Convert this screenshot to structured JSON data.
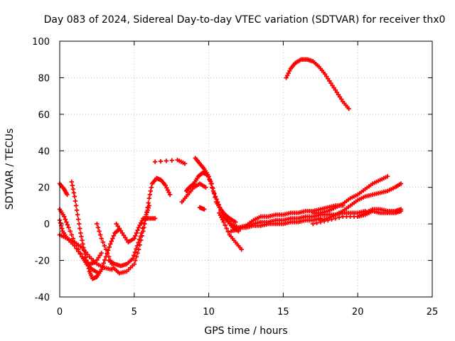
{
  "chart_data": {
    "type": "scatter",
    "title": "Day 083 of 2024, Sidereal Day-to-day VTEC variation (SDTVAR) for receiver thx0",
    "xlabel": "GPS time / hours",
    "ylabel": "SDTVAR / TECUs",
    "xlim": [
      0,
      25
    ],
    "ylim": [
      -40,
      100
    ],
    "xticks": [
      0,
      5,
      10,
      15,
      20,
      25
    ],
    "yticks": [
      -40,
      -20,
      0,
      20,
      40,
      60,
      80,
      100
    ],
    "grid": true,
    "marker": "plus",
    "color": "#ff0000",
    "series": [
      {
        "name": "s1",
        "points": [
          [
            0.0,
            22
          ],
          [
            0.3,
            19
          ],
          [
            0.5,
            16
          ]
        ]
      },
      {
        "name": "s2",
        "points": [
          [
            0.0,
            8
          ],
          [
            0.3,
            4
          ],
          [
            0.6,
            -2
          ],
          [
            1.0,
            -10
          ],
          [
            1.5,
            -18
          ],
          [
            2.0,
            -22
          ],
          [
            2.4,
            -21
          ],
          [
            2.8,
            -16
          ]
        ]
      },
      {
        "name": "s3",
        "points": [
          [
            0.0,
            2
          ],
          [
            0.2,
            -4
          ],
          [
            0.5,
            -8
          ],
          [
            1.0,
            -12
          ],
          [
            1.5,
            -18
          ],
          [
            1.8,
            -22
          ],
          [
            2.2,
            -25
          ],
          [
            2.6,
            -27
          ]
        ]
      },
      {
        "name": "s4",
        "points": [
          [
            0.0,
            -6
          ],
          [
            0.5,
            -8
          ],
          [
            1.0,
            -10
          ],
          [
            1.5,
            -13
          ],
          [
            2.0,
            -18
          ],
          [
            2.5,
            -22
          ],
          [
            3.0,
            -24
          ],
          [
            3.5,
            -25
          ]
        ]
      },
      {
        "name": "s5",
        "points": [
          [
            0.8,
            23
          ],
          [
            1.0,
            15
          ],
          [
            1.2,
            5
          ],
          [
            1.4,
            -5
          ],
          [
            1.6,
            -13
          ],
          [
            1.8,
            -20
          ],
          [
            2.0,
            -26
          ],
          [
            2.2,
            -30
          ],
          [
            2.5,
            -29
          ],
          [
            2.8,
            -25
          ],
          [
            3.1,
            -18
          ],
          [
            3.4,
            -11
          ],
          [
            3.7,
            -5
          ],
          [
            4.0,
            -3
          ]
        ]
      },
      {
        "name": "s6",
        "points": [
          [
            2.5,
            0
          ],
          [
            2.8,
            -8
          ],
          [
            3.2,
            -16
          ],
          [
            3.6,
            -24
          ],
          [
            4.0,
            -27
          ],
          [
            4.5,
            -26
          ],
          [
            5.0,
            -22
          ],
          [
            5.3,
            -14
          ],
          [
            5.6,
            -4
          ],
          [
            5.8,
            4
          ],
          [
            6.0,
            14
          ],
          [
            6.2,
            22
          ],
          [
            6.5,
            25
          ],
          [
            6.8,
            24
          ],
          [
            7.1,
            21
          ],
          [
            7.4,
            16
          ]
        ]
      },
      {
        "name": "s7",
        "points": [
          [
            3.8,
            0
          ],
          [
            4.2,
            -5
          ],
          [
            4.6,
            -10
          ],
          [
            5.0,
            -8
          ],
          [
            5.3,
            -2
          ],
          [
            5.6,
            3
          ],
          [
            6.0,
            3
          ],
          [
            6.4,
            3
          ]
        ]
      },
      {
        "name": "s8",
        "points": [
          [
            3.3,
            -20
          ],
          [
            3.7,
            -22
          ],
          [
            4.1,
            -23
          ],
          [
            4.5,
            -22
          ],
          [
            4.9,
            -19
          ],
          [
            5.2,
            -12
          ],
          [
            5.5,
            -5
          ],
          [
            5.8,
            5
          ],
          [
            6.0,
            10
          ]
        ]
      },
      {
        "name": "s9",
        "points": [
          [
            6.4,
            34
          ],
          [
            7.9,
            35
          ],
          [
            8.4,
            33
          ]
        ]
      },
      {
        "name": "s10",
        "points": [
          [
            8.5,
            18
          ],
          [
            8.7,
            20
          ],
          [
            9.0,
            22
          ],
          [
            9.3,
            26
          ],
          [
            9.6,
            28
          ],
          [
            9.9,
            27
          ],
          [
            10.2,
            22
          ],
          [
            10.5,
            12
          ],
          [
            10.8,
            8
          ],
          [
            11.1,
            5
          ],
          [
            11.4,
            3
          ],
          [
            11.8,
            1
          ]
        ]
      },
      {
        "name": "s11",
        "points": [
          [
            8.2,
            12
          ],
          [
            8.6,
            16
          ],
          [
            9.0,
            20
          ],
          [
            9.4,
            22
          ],
          [
            9.8,
            20
          ]
        ]
      },
      {
        "name": "s12",
        "points": [
          [
            9.1,
            36
          ],
          [
            9.4,
            33
          ],
          [
            9.7,
            30
          ],
          [
            10.0,
            26
          ],
          [
            10.3,
            18
          ],
          [
            10.6,
            12
          ],
          [
            10.9,
            6
          ],
          [
            11.2,
            2
          ],
          [
            11.6,
            -2
          ],
          [
            12.0,
            -4
          ]
        ]
      },
      {
        "name": "s13",
        "points": [
          [
            9.4,
            9
          ],
          [
            9.7,
            8
          ]
        ]
      },
      {
        "name": "s14",
        "points": [
          [
            10.7,
            6
          ],
          [
            11.0,
            1
          ],
          [
            11.4,
            -6
          ],
          [
            11.8,
            -10
          ],
          [
            12.2,
            -14
          ]
        ]
      },
      {
        "name": "s15",
        "points": [
          [
            11.0,
            5
          ],
          [
            11.5,
            0
          ],
          [
            12.0,
            -2
          ],
          [
            12.5,
            -1
          ],
          [
            13.0,
            2
          ],
          [
            13.5,
            4
          ],
          [
            14.0,
            4
          ],
          [
            14.5,
            5
          ],
          [
            15.0,
            5
          ],
          [
            15.5,
            6
          ],
          [
            16.0,
            6
          ],
          [
            16.5,
            7
          ],
          [
            17.0,
            7
          ],
          [
            17.5,
            8
          ],
          [
            18.0,
            9
          ],
          [
            18.5,
            10
          ],
          [
            19.0,
            10
          ]
        ]
      },
      {
        "name": "s16",
        "points": [
          [
            11.5,
            -4
          ],
          [
            12.0,
            -3
          ],
          [
            12.5,
            -1
          ],
          [
            13.0,
            0
          ],
          [
            13.5,
            1
          ],
          [
            14.0,
            1
          ],
          [
            14.5,
            2
          ],
          [
            15.0,
            2
          ],
          [
            15.5,
            3
          ],
          [
            16.0,
            3
          ],
          [
            16.5,
            4
          ],
          [
            17.0,
            4
          ],
          [
            17.5,
            5
          ],
          [
            18.0,
            5
          ],
          [
            18.5,
            5
          ],
          [
            19.0,
            6
          ],
          [
            19.5,
            6
          ],
          [
            20.0,
            6
          ],
          [
            20.5,
            7
          ]
        ]
      },
      {
        "name": "s17",
        "points": [
          [
            12.0,
            -2
          ],
          [
            12.5,
            -2
          ],
          [
            13.0,
            -1
          ],
          [
            13.5,
            -1
          ],
          [
            14.0,
            0
          ],
          [
            14.5,
            0
          ],
          [
            15.0,
            0
          ],
          [
            15.5,
            1
          ],
          [
            16.0,
            1
          ],
          [
            16.5,
            2
          ],
          [
            17.0,
            2
          ],
          [
            17.5,
            3
          ]
        ]
      },
      {
        "name": "s18",
        "points": [
          [
            17.0,
            6
          ],
          [
            17.5,
            6
          ],
          [
            18.0,
            7
          ],
          [
            18.5,
            9
          ],
          [
            19.0,
            11
          ],
          [
            19.5,
            14
          ],
          [
            20.0,
            16
          ],
          [
            20.5,
            19
          ],
          [
            21.0,
            22
          ],
          [
            21.5,
            24
          ],
          [
            22.0,
            26
          ]
        ]
      },
      {
        "name": "s19",
        "points": [
          [
            17.5,
            2
          ],
          [
            18.0,
            3
          ],
          [
            18.5,
            5
          ],
          [
            19.0,
            7
          ],
          [
            19.5,
            10
          ],
          [
            20.0,
            13
          ],
          [
            20.5,
            15
          ],
          [
            21.0,
            16
          ],
          [
            21.5,
            17
          ],
          [
            22.0,
            18
          ],
          [
            22.5,
            20
          ],
          [
            22.9,
            22
          ]
        ]
      },
      {
        "name": "s20",
        "points": [
          [
            17.0,
            0
          ],
          [
            18.0,
            2
          ],
          [
            19.0,
            4
          ],
          [
            20.0,
            4
          ],
          [
            20.5,
            5
          ],
          [
            21.0,
            7
          ],
          [
            21.5,
            6
          ],
          [
            22.0,
            6
          ],
          [
            22.5,
            6
          ],
          [
            22.9,
            7
          ]
        ]
      },
      {
        "name": "s21",
        "points": [
          [
            20.0,
            4
          ],
          [
            20.5,
            6
          ],
          [
            21.0,
            8
          ],
          [
            21.5,
            8
          ],
          [
            22.0,
            7
          ],
          [
            22.5,
            7
          ],
          [
            22.9,
            8
          ]
        ]
      },
      {
        "name": "s22",
        "points": [
          [
            15.2,
            80
          ],
          [
            15.5,
            85
          ],
          [
            15.8,
            88
          ],
          [
            16.2,
            90
          ],
          [
            16.6,
            90
          ],
          [
            17.0,
            89
          ],
          [
            17.4,
            86
          ],
          [
            17.8,
            82
          ],
          [
            18.2,
            77
          ],
          [
            18.6,
            72
          ],
          [
            19.0,
            67
          ],
          [
            19.4,
            63
          ]
        ]
      }
    ]
  }
}
